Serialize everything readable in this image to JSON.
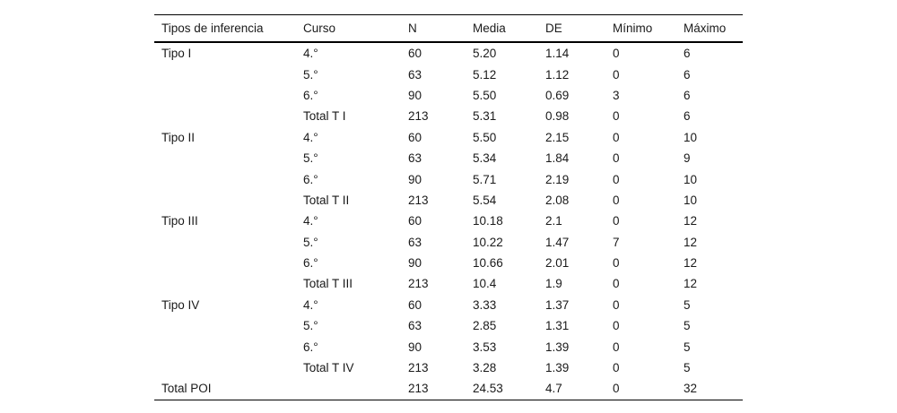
{
  "page": {
    "background": "#ffffff",
    "text_color": "#1a1a1a",
    "rule_color": "#000000"
  },
  "table": {
    "columns": [
      "Tipos de inferencia",
      "Curso",
      "N",
      "Media",
      "DE",
      "Mínimo",
      "Máximo"
    ],
    "rows": [
      [
        "Tipo I",
        "4.°",
        "60",
        "5.20",
        "1.14",
        "0",
        "6"
      ],
      [
        "",
        "5.°",
        "63",
        "5.12",
        "1.12",
        "0",
        "6"
      ],
      [
        "",
        "6.°",
        "90",
        "5.50",
        "0.69",
        "3",
        "6"
      ],
      [
        "",
        "Total T I",
        "213",
        "5.31",
        "0.98",
        "0",
        "6"
      ],
      [
        "Tipo II",
        "4.°",
        "60",
        "5.50",
        "2.15",
        "0",
        "10"
      ],
      [
        "",
        "5.°",
        "63",
        "5.34",
        "1.84",
        "0",
        "9"
      ],
      [
        "",
        "6.°",
        "90",
        "5.71",
        "2.19",
        "0",
        "10"
      ],
      [
        "",
        "Total T II",
        "213",
        "5.54",
        "2.08",
        "0",
        "10"
      ],
      [
        "Tipo III",
        "4.°",
        "60",
        "10.18",
        "2.1",
        "0",
        "12"
      ],
      [
        "",
        "5.°",
        "63",
        "10.22",
        "1.47",
        "7",
        "12"
      ],
      [
        "",
        "6.°",
        "90",
        "10.66",
        "2.01",
        "0",
        "12"
      ],
      [
        "",
        "Total T III",
        "213",
        "10.4",
        "1.9",
        "0",
        "12"
      ],
      [
        "Tipo IV",
        "4.°",
        "60",
        "3.33",
        "1.37",
        "0",
        "5"
      ],
      [
        "",
        "5.°",
        "63",
        "2.85",
        "1.31",
        "0",
        "5"
      ],
      [
        "",
        "6.°",
        "90",
        "3.53",
        "1.39",
        "0",
        "5"
      ],
      [
        "",
        "Total T IV",
        "213",
        "3.28",
        "1.39",
        "0",
        "5"
      ],
      [
        "Total POI",
        "",
        "213",
        "24.53",
        "4.7",
        "0",
        "32"
      ]
    ]
  }
}
